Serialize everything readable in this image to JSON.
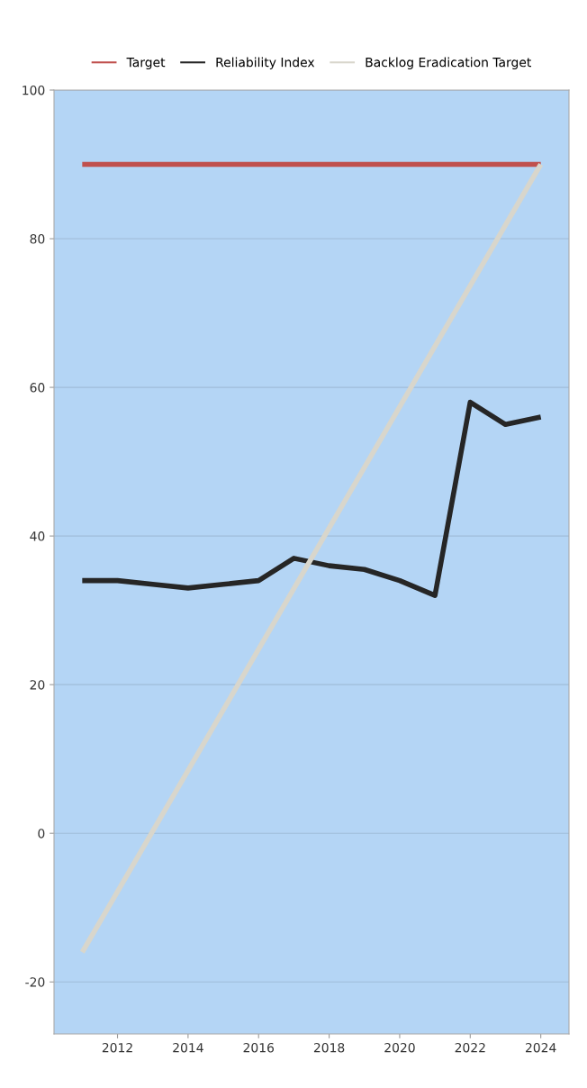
{
  "chart_data": {
    "type": "line",
    "x": [
      2011,
      2012,
      2013,
      2014,
      2015,
      2016,
      2017,
      2018,
      2019,
      2020,
      2021,
      2022,
      2023,
      2024
    ],
    "series": [
      {
        "name": "Target",
        "color": "#c0504d",
        "values": [
          90,
          90,
          90,
          90,
          90,
          90,
          90,
          90,
          90,
          90,
          90,
          90,
          90,
          90
        ]
      },
      {
        "name": "Reliability Index",
        "color": "#262626",
        "values": [
          34,
          34,
          33.5,
          33,
          33.5,
          34,
          37,
          36,
          35.5,
          34,
          32,
          58,
          55,
          56
        ]
      },
      {
        "name": "Backlog Eradication Target",
        "color": "#d8d6cc",
        "x": [
          2011,
          2024
        ],
        "values": [
          -16,
          90
        ]
      }
    ],
    "xlim": [
      2010.2,
      2024.8
    ],
    "xticks": [
      2012,
      2014,
      2016,
      2018,
      2020,
      2022,
      2024
    ],
    "ylim": [
      -27,
      100
    ],
    "yticks": [
      -20,
      0,
      20,
      40,
      60,
      80,
      100
    ],
    "grid": "y",
    "legend": "top",
    "marker": "none",
    "line_style": "solid"
  }
}
